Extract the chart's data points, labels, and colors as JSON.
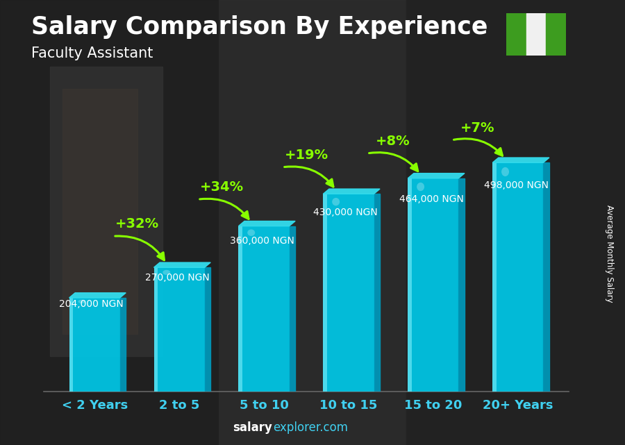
{
  "title": "Salary Comparison By Experience",
  "subtitle": "Faculty Assistant",
  "categories": [
    "< 2 Years",
    "2 to 5",
    "5 to 10",
    "10 to 15",
    "15 to 20",
    "20+ Years"
  ],
  "values": [
    204000,
    270000,
    360000,
    430000,
    464000,
    498000
  ],
  "bar_color_main": "#00c8e8",
  "bar_color_light": "#55ddee",
  "bar_color_dark": "#0099bb",
  "bar_color_top": "#33ddee",
  "salary_labels": [
    "204,000 NGN",
    "270,000 NGN",
    "360,000 NGN",
    "430,000 NGN",
    "464,000 NGN",
    "498,000 NGN"
  ],
  "pct_labels": [
    "+32%",
    "+34%",
    "+19%",
    "+8%",
    "+7%"
  ],
  "title_fontsize": 25,
  "subtitle_fontsize": 15,
  "bg_color": "#2e2e2e",
  "ylabel": "Average Monthly Salary",
  "footer_salary": "salary",
  "footer_rest": "explorer.com",
  "green_color": "#88ff00",
  "white_color": "#ffffff",
  "ylim": [
    0,
    600000
  ],
  "flag_green": "#3d9c1f",
  "flag_white": "#f0f0f0",
  "bar_width": 0.6,
  "x_label_fontsize": 13
}
